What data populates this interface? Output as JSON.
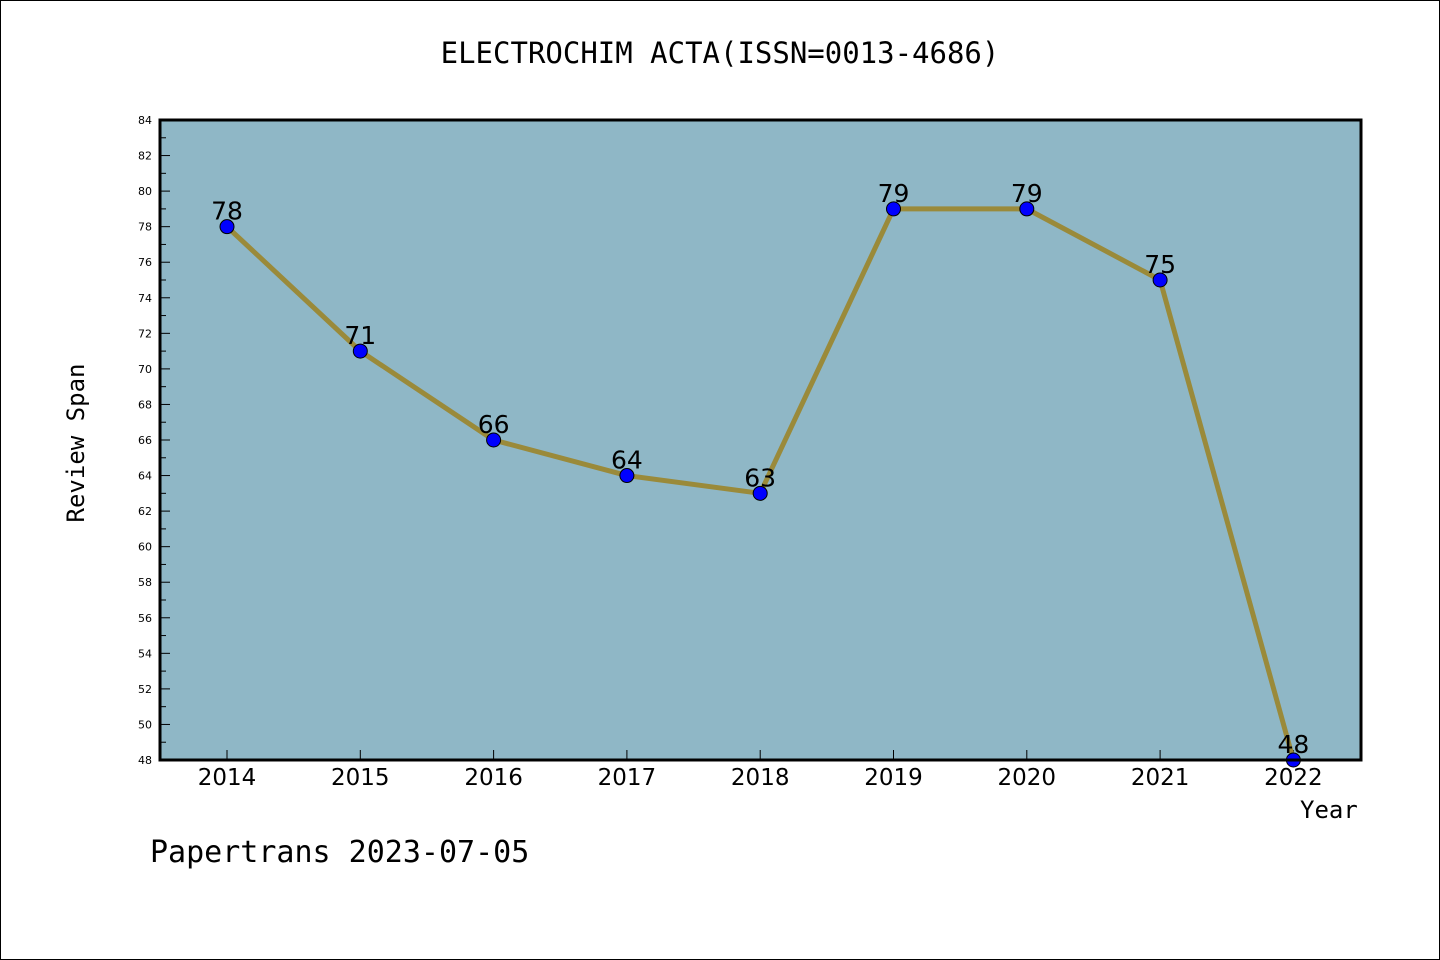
{
  "chart_data": {
    "type": "line",
    "title": "ELECTROCHIM ACTA(ISSN=0013-4686)",
    "xlabel": "Year",
    "ylabel": "Review Span",
    "categories": [
      "2014",
      "2015",
      "2016",
      "2017",
      "2018",
      "2019",
      "2020",
      "2021",
      "2022"
    ],
    "series": [
      {
        "values": [
          78,
          71,
          66,
          64,
          63,
          79,
          79,
          75,
          48
        ]
      }
    ],
    "ylim": [
      48,
      84
    ],
    "yticks": [
      48,
      50,
      52,
      54,
      56,
      58,
      60,
      62,
      64,
      66,
      68,
      70,
      72,
      74,
      76,
      78,
      80,
      82,
      84
    ],
    "data_labels": [
      "78",
      "71",
      "66",
      "64",
      "63",
      "79",
      "79",
      "75",
      "48"
    ],
    "grid": false,
    "colors": {
      "plot_background": "#8fb7c6",
      "line": "#9a8a3a",
      "marker": "#0000ff"
    }
  },
  "footer": {
    "text": "Papertrans 2023-07-05"
  }
}
